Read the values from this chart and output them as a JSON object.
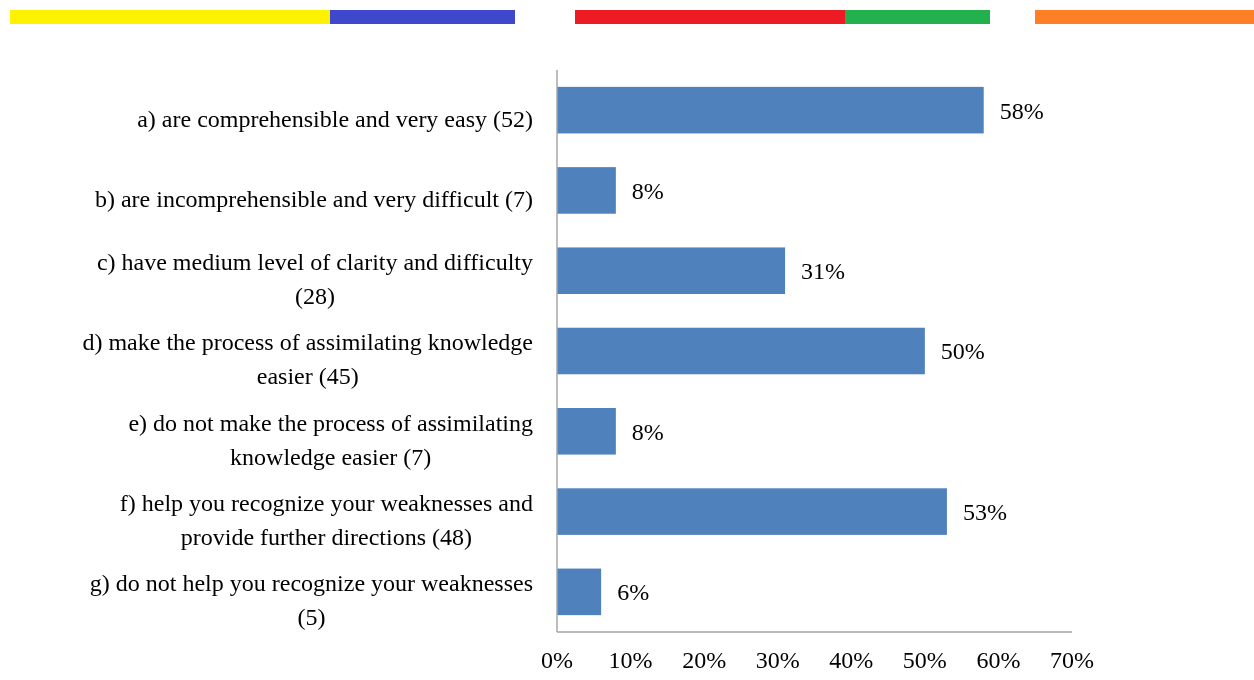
{
  "chart_data": {
    "type": "bar",
    "orientation": "horizontal",
    "categories": [
      "a) are comprehensible and very easy (52)",
      "b) are incomprehensible and very difficult (7)",
      "c) have medium level of clarity and difficulty (28)",
      "d) make the process of assimilating knowledge easier (45)",
      "e) do not make the process of assimilating knowledge easier (7)",
      "f) help you recognize your weaknesses and provide further directions (48)",
      "g) do not help you recognize your weaknesses (5)"
    ],
    "values": [
      58,
      8,
      31,
      50,
      8,
      53,
      6
    ],
    "value_labels": [
      "58%",
      "8%",
      "31%",
      "50%",
      "8%",
      "53%",
      "6%"
    ],
    "color": "#4f81bd",
    "xlim": [
      0,
      70
    ],
    "xticks": [
      {
        "value": 0,
        "label": "0%"
      },
      {
        "value": 10,
        "label": "10%"
      },
      {
        "value": 20,
        "label": "20%"
      },
      {
        "value": 30,
        "label": "30%"
      },
      {
        "value": 40,
        "label": "40%"
      },
      {
        "value": 50,
        "label": "50%"
      },
      {
        "value": 60,
        "label": "60%"
      },
      {
        "value": 70,
        "label": "70%"
      }
    ],
    "grid": false
  }
}
